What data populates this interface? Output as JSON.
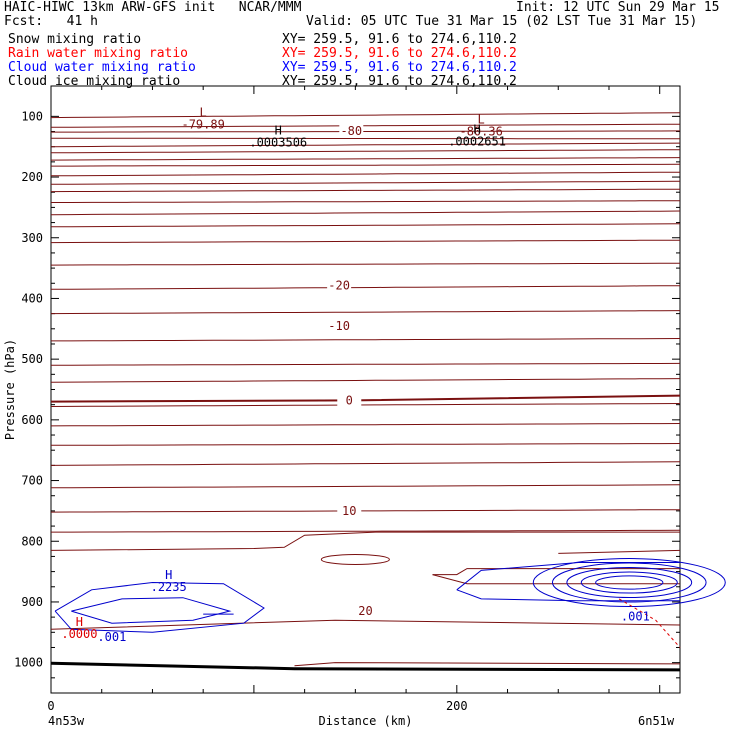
{
  "header": {
    "title_left": "HAIC-HIWC 13km ARW-GFS init   NCAR/MMM",
    "init": "Init: 12 UTC Sun 29 Mar 15",
    "fcst": "Fcst:   41 h",
    "valid": "Valid: 05 UTC Tue 31 Mar 15 (02 LST Tue 31 Mar 15)"
  },
  "fields": [
    {
      "name": "Snow mixing ratio",
      "xy": "XY= 259.5, 91.6 to 274.6,110.2",
      "color": "#000000"
    },
    {
      "name": "Rain water mixing ratio",
      "xy": "XY= 259.5, 91.6 to 274.6,110.2",
      "color": "#ff0000"
    },
    {
      "name": "Cloud water mixing ratio",
      "xy": "XY= 259.5, 91.6 to 274.6,110.2",
      "color": "#0000ff"
    },
    {
      "name": "Cloud ice mixing ratio",
      "xy": "XY= 259.5, 91.6 to 274.6,110.2",
      "color": "#000000"
    }
  ],
  "chart_data": {
    "type": "line",
    "xlabel": "Distance (km)",
    "ylabel": "Pressure (hPa)",
    "xlim": [
      0,
      310
    ],
    "ylim": [
      1050,
      50
    ],
    "x_ticks": [
      0,
      200
    ],
    "y_ticks": [
      100,
      200,
      300,
      400,
      500,
      600,
      700,
      800,
      900,
      1000
    ],
    "corner_left": "4n53w",
    "corner_right": "6n51w",
    "colors": {
      "temp": "#7a1010",
      "cloud": "#0000cc",
      "rain": "#dd0000",
      "ground": "#000000"
    },
    "temperature_labels": [
      {
        "text": "-80",
        "x": 148,
        "p": 124
      },
      {
        "text": "-20",
        "x": 142,
        "p": 379
      },
      {
        "text": "-10",
        "x": 142,
        "p": 445
      },
      {
        "text": "0",
        "x": 147,
        "p": 568
      },
      {
        "text": "10",
        "x": 147,
        "p": 750
      },
      {
        "text": "20",
        "x": 155,
        "p": 915
      }
    ],
    "extrema_labels": [
      {
        "kind": "L",
        "value": "-79.89",
        "x": 75,
        "p": 100,
        "color": "temp"
      },
      {
        "kind": "H",
        "value": ".0003506",
        "x": 112,
        "p": 130,
        "color": "ice"
      },
      {
        "kind": "L",
        "value": "-80.36",
        "x": 212,
        "p": 112,
        "color": "temp"
      },
      {
        "kind": "H",
        "value": ".0002651",
        "x": 210,
        "p": 128,
        "color": "ice"
      },
      {
        "kind": "H",
        "value": ".2235",
        "x": 58,
        "p": 862,
        "color": "cloud"
      },
      {
        "kind": "H",
        "value": ".0000",
        "x": 14,
        "p": 940,
        "color": "rain"
      }
    ],
    "cloud_labels": [
      {
        "text": ".001",
        "x": 30,
        "p": 958
      },
      {
        "text": ".001",
        "x": 288,
        "p": 924
      }
    ]
  }
}
